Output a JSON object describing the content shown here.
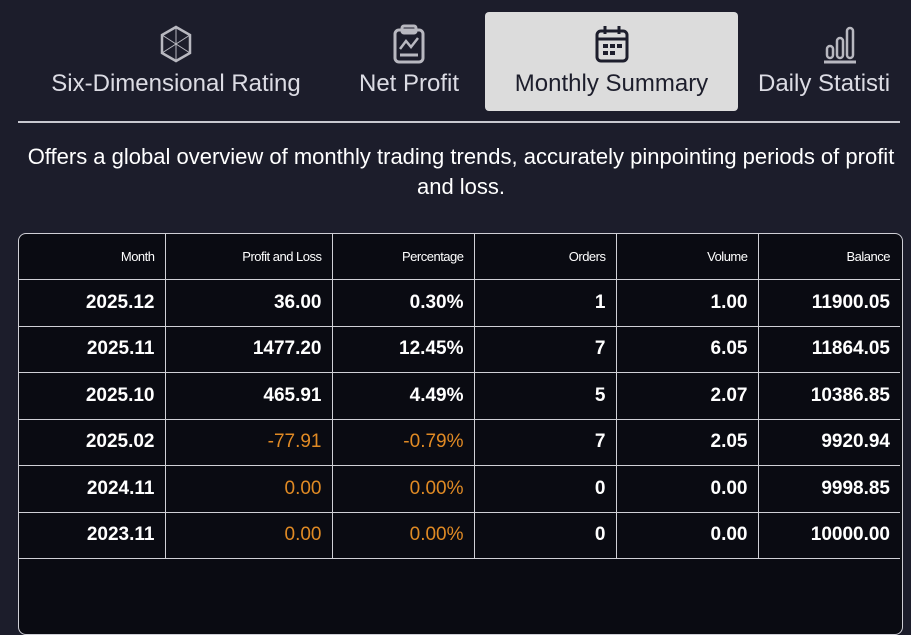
{
  "tabs": [
    {
      "label": "Six-Dimensional Rating",
      "icon": "hexagon-icon",
      "active": false
    },
    {
      "label": "Net Profit",
      "icon": "clipboard-chart-icon",
      "active": false
    },
    {
      "label": "Monthly Summary",
      "icon": "calendar-icon",
      "active": true
    },
    {
      "label": "Daily Statisti",
      "icon": "bar-chart-icon",
      "active": false
    }
  ],
  "description": "Offers a global overview of monthly trading trends, accurately pinpointing periods of profit and loss.",
  "table": {
    "headers": [
      "Month",
      "Profit and Loss",
      "Percentage",
      "Orders",
      "Volume",
      "Balance"
    ],
    "rows": [
      [
        "2025.12",
        "36.00",
        "0.30%",
        "1",
        "1.00",
        "11900.05"
      ],
      [
        "2025.11",
        "1477.20",
        "12.45%",
        "7",
        "6.05",
        "11864.05"
      ],
      [
        "2025.10",
        "465.91",
        "4.49%",
        "5",
        "2.07",
        "10386.85"
      ],
      [
        "2025.02",
        "-77.91",
        "-0.79%",
        "7",
        "2.05",
        "9920.94"
      ],
      [
        "2024.11",
        "0.00",
        "0.00%",
        "0",
        "0.00",
        "9998.85"
      ],
      [
        "2023.11",
        "0.00",
        "0.00%",
        "0",
        "0.00",
        "10000.00"
      ]
    ],
    "highlight_rows": [
      3,
      4,
      5
    ],
    "highlight_color": "#e08a24"
  }
}
